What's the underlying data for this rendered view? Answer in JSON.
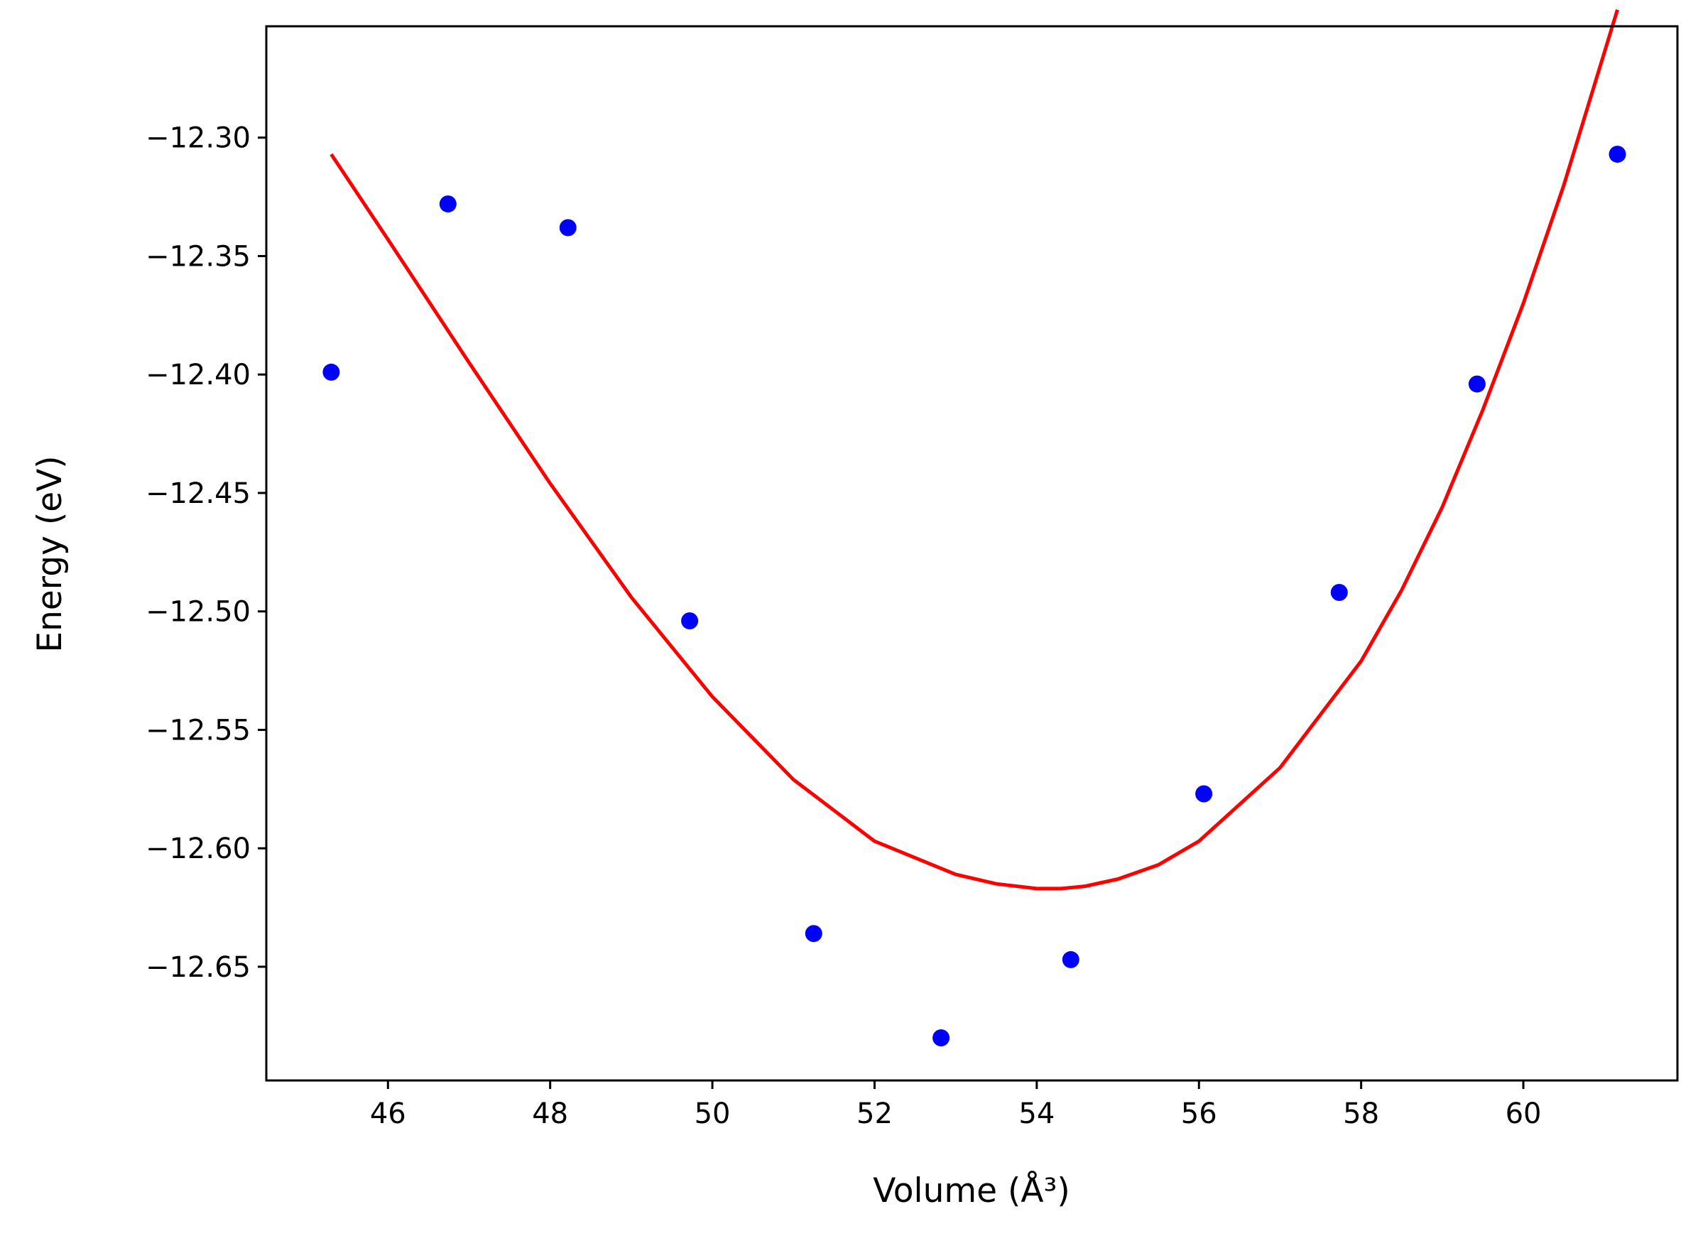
{
  "chart_data": {
    "type": "scatter",
    "title": "",
    "xlabel": "Volume (Å³)",
    "ylabel": "Energy (eV)",
    "xlim": [
      44.5,
      61.9
    ],
    "ylim": [
      -12.698,
      -12.253
    ],
    "x_ticks": [
      46,
      48,
      50,
      52,
      54,
      56,
      58,
      60
    ],
    "y_ticks": [
      -12.3,
      -12.35,
      -12.4,
      -12.45,
      -12.5,
      -12.55,
      -12.6,
      -12.65
    ],
    "x_tick_labels": [
      "46",
      "48",
      "50",
      "52",
      "54",
      "56",
      "58",
      "60"
    ],
    "y_tick_labels": [
      "−12.30",
      "−12.35",
      "−12.40",
      "−12.45",
      "−12.50",
      "−12.55",
      "−12.60",
      "−12.65"
    ],
    "grid": false,
    "series": [
      {
        "type": "scatter",
        "color": "#0000ff",
        "x": [
          45.3,
          46.74,
          48.22,
          49.72,
          51.25,
          52.82,
          54.42,
          56.06,
          57.73,
          59.43,
          61.16
        ],
        "y": [
          -12.399,
          -12.328,
          -12.338,
          -12.504,
          -12.636,
          -12.68,
          -12.647,
          -12.577,
          -12.492,
          -12.404,
          -12.307
        ]
      },
      {
        "type": "line",
        "color": "#ff0000",
        "x": [
          45.3,
          46.0,
          47.0,
          48.0,
          49.0,
          50.0,
          51.0,
          52.0,
          53.0,
          53.5,
          54.0,
          54.3,
          54.6,
          55.0,
          55.5,
          56.0,
          57.0,
          58.0,
          58.5,
          59.0,
          59.5,
          60.0,
          60.5,
          61.16
        ],
        "y": [
          -12.307,
          -12.343,
          -12.395,
          -12.446,
          -12.494,
          -12.536,
          -12.571,
          -12.597,
          -12.611,
          -12.615,
          -12.617,
          -12.617,
          -12.616,
          -12.613,
          -12.607,
          -12.597,
          -12.566,
          -12.521,
          -12.491,
          -12.456,
          -12.415,
          -12.37,
          -12.32,
          -12.246
        ]
      }
    ]
  }
}
